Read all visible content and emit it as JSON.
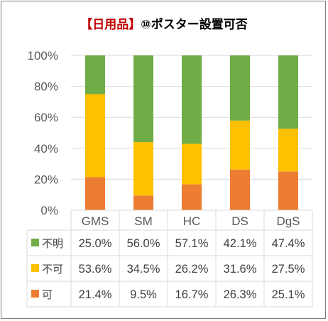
{
  "chart_data": {
    "type": "bar",
    "stacked": true,
    "title_bracket": "【日用品】",
    "title_rest": "⑩ポスター設置可否",
    "categories": [
      "GMS",
      "SM",
      "HC",
      "DS",
      "DgS"
    ],
    "series": [
      {
        "name": "可",
        "values": [
          21.4,
          9.5,
          16.7,
          26.3,
          25.1
        ],
        "labels": [
          "21.4%",
          "9.5%",
          "16.7%",
          "26.3%",
          "25.1%"
        ]
      },
      {
        "name": "不可",
        "values": [
          53.6,
          34.5,
          26.2,
          31.6,
          27.5
        ],
        "labels": [
          "53.6%",
          "34.5%",
          "26.2%",
          "31.6%",
          "27.5%"
        ]
      },
      {
        "name": "不明",
        "values": [
          25.0,
          56.0,
          57.1,
          42.1,
          47.4
        ],
        "labels": [
          "25.0%",
          "56.0%",
          "57.1%",
          "42.1%",
          "47.4%"
        ]
      }
    ],
    "ylim": [
      0,
      100
    ],
    "yticks": [
      "0%",
      "20%",
      "40%",
      "60%",
      "80%",
      "100%"
    ],
    "grid": true,
    "legend": "data-table",
    "colors": {
      "可": "#ED7D31",
      "不可": "#FFC000",
      "不明": "#70AD47",
      "title_bracket": "#C00000",
      "grid": "#d9d9d9"
    }
  }
}
